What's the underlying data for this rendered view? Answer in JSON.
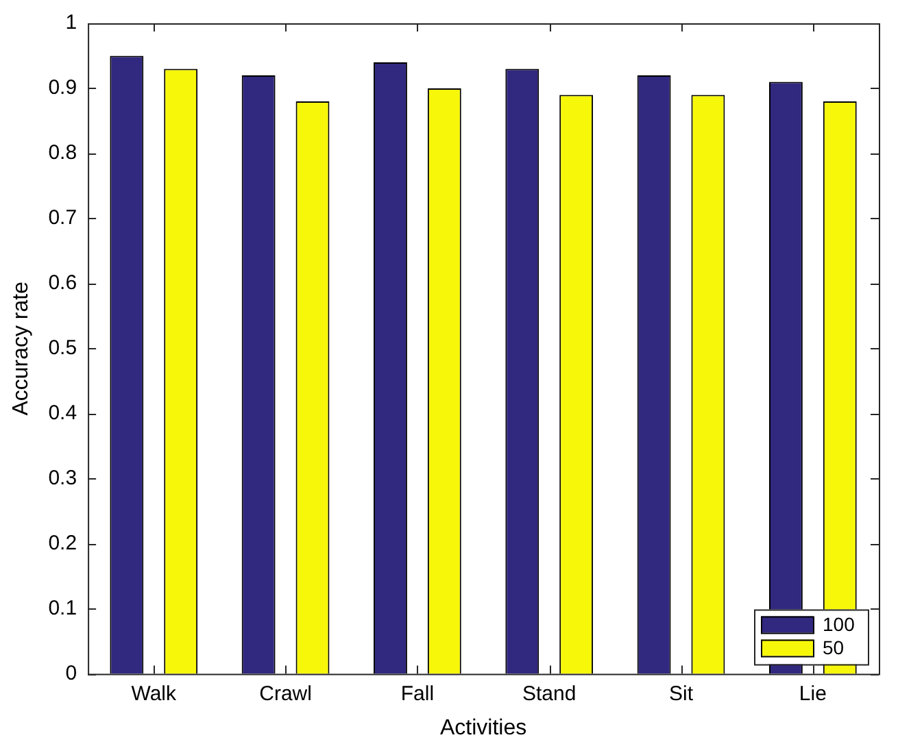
{
  "chart_data": {
    "type": "bar",
    "xlabel": "Activities",
    "ylabel": "Accuracy rate",
    "categories": [
      "Walk",
      "Crawl",
      "Fall",
      "Stand",
      "Sit",
      "Lie"
    ],
    "series": [
      {
        "name": "100",
        "color": "#312880",
        "values": [
          0.95,
          0.92,
          0.94,
          0.93,
          0.92,
          0.91
        ]
      },
      {
        "name": "50",
        "color": "#f7f70a",
        "values": [
          0.93,
          0.88,
          0.9,
          0.89,
          0.89,
          0.88
        ]
      }
    ],
    "ylim": [
      0,
      1
    ],
    "yticks": [
      0,
      0.1,
      0.2,
      0.3,
      0.4,
      0.5,
      0.6,
      0.7,
      0.8,
      0.9,
      1
    ],
    "grid": false,
    "legend": "bottom right"
  }
}
